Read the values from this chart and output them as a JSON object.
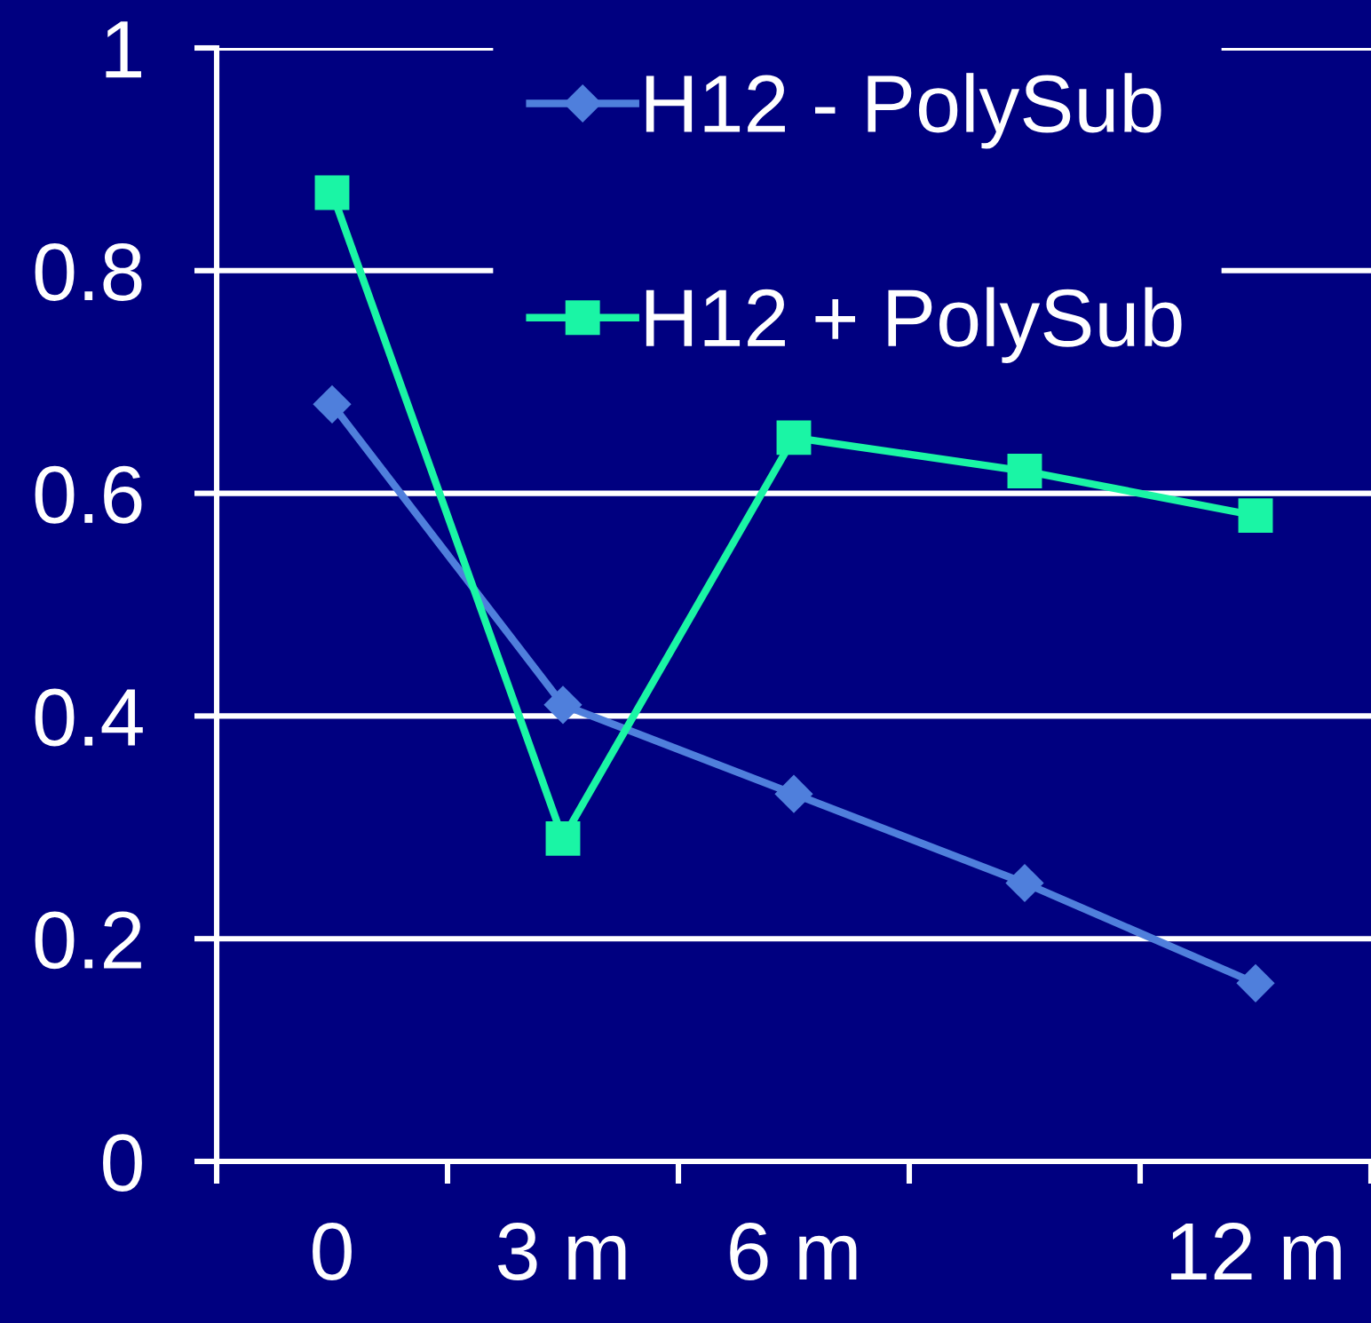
{
  "chart_data": {
    "type": "line",
    "categories": [
      "0",
      "3 m",
      "6 m",
      null,
      "12 m"
    ],
    "series": [
      {
        "name": "H12 - PolySub",
        "color": "#4f7fdc",
        "marker": "diamond",
        "values": [
          0.68,
          0.41,
          0.33,
          0.25,
          0.16
        ]
      },
      {
        "name": "H12 + PolySub",
        "color": "#1af5a5",
        "marker": "square",
        "values": [
          0.87,
          0.29,
          0.65,
          0.62,
          0.58
        ]
      }
    ],
    "ylim": [
      0,
      1
    ],
    "yticks": [
      0,
      0.2,
      0.4,
      0.6,
      0.8,
      1
    ],
    "grid": "y",
    "legend": "top",
    "line_style": "solid"
  }
}
